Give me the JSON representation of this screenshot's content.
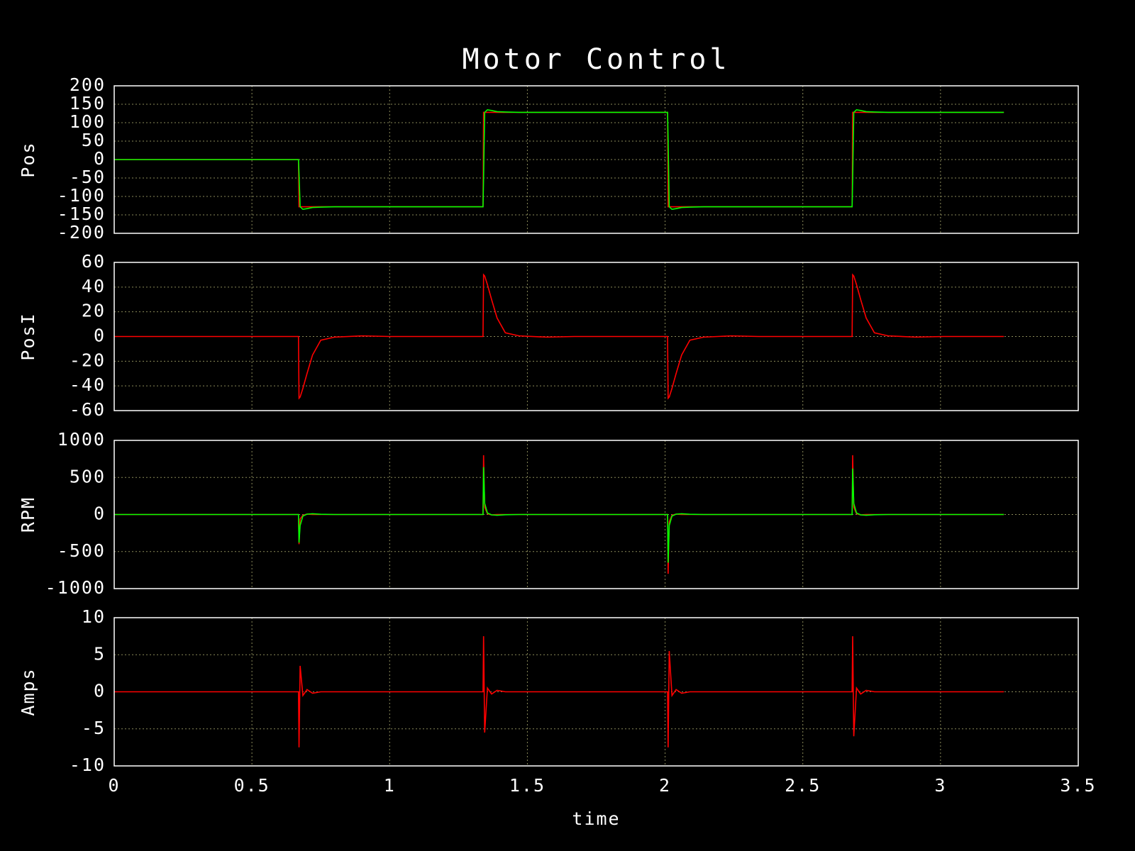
{
  "chart_data": [
    {
      "type": "line",
      "title": "Motor Control",
      "ylabel": "Pos",
      "xlim": [
        0,
        3.5
      ],
      "xticks": [
        0,
        0.5,
        1,
        1.5,
        2,
        2.5,
        3,
        3.5
      ],
      "ylim": [
        -200,
        200
      ],
      "yticks": [
        -200,
        -150,
        -100,
        -50,
        0,
        50,
        100,
        150,
        200
      ],
      "grid": true,
      "x": [
        0,
        0.669,
        0.671,
        0.675,
        0.685,
        0.7,
        0.72,
        0.75,
        0.8,
        0.9,
        1.0,
        1.339,
        1.341,
        1.345,
        1.355,
        1.37,
        1.39,
        1.42,
        1.47,
        1.57,
        1.67,
        2.009,
        2.011,
        2.015,
        2.025,
        2.04,
        2.06,
        2.09,
        2.14,
        2.24,
        2.34,
        2.679,
        2.681,
        2.685,
        2.695,
        2.71,
        2.73,
        2.76,
        2.81,
        2.91,
        3.01,
        3.23
      ],
      "series": [
        {
          "color": "#ff0000",
          "values": [
            0,
            0,
            -128,
            -128,
            -128,
            -128,
            -128,
            -128,
            -128,
            -128,
            -128,
            -128,
            128,
            128,
            128,
            128,
            128,
            128,
            128,
            128,
            128,
            128,
            -128,
            -128,
            -128,
            -128,
            -128,
            -128,
            -128,
            -128,
            -128,
            -128,
            128,
            128,
            128,
            128,
            128,
            128,
            128,
            128,
            128,
            128
          ]
        },
        {
          "color": "#00ff00",
          "values": [
            0,
            0,
            -40,
            -128,
            -135,
            -133,
            -130,
            -129,
            -128,
            -128,
            -128,
            -128,
            -50,
            128,
            135,
            133,
            130,
            129,
            128,
            128,
            128,
            128,
            50,
            -128,
            -135,
            -133,
            -130,
            -129,
            -128,
            -128,
            -128,
            -128,
            -50,
            128,
            135,
            133,
            130,
            129,
            128,
            128,
            128,
            128
          ]
        }
      ]
    },
    {
      "type": "line",
      "ylabel": "PosI",
      "xlim": [
        0,
        3.5
      ],
      "xticks": [
        0,
        0.5,
        1,
        1.5,
        2,
        2.5,
        3,
        3.5
      ],
      "ylim": [
        -60,
        60
      ],
      "yticks": [
        -60,
        -40,
        -20,
        0,
        20,
        40,
        60
      ],
      "grid": true,
      "x": [
        0,
        0.669,
        0.671,
        0.675,
        0.685,
        0.7,
        0.72,
        0.75,
        0.8,
        0.9,
        1.0,
        1.339,
        1.341,
        1.345,
        1.355,
        1.37,
        1.39,
        1.42,
        1.47,
        1.57,
        1.67,
        2.009,
        2.011,
        2.015,
        2.025,
        2.04,
        2.06,
        2.09,
        2.14,
        2.24,
        2.34,
        2.679,
        2.681,
        2.685,
        2.695,
        2.71,
        2.73,
        2.76,
        2.81,
        2.91,
        3.01,
        3.23
      ],
      "series": [
        {
          "color": "#ff0000",
          "values": [
            0,
            0,
            -50,
            -49,
            -42,
            -30,
            -15,
            -3,
            -0.5,
            0.5,
            0,
            0,
            50,
            49,
            42,
            30,
            15,
            3,
            0.5,
            -0.5,
            0,
            0,
            -50,
            -49,
            -42,
            -30,
            -15,
            -3,
            -0.5,
            0.5,
            0,
            0,
            50,
            49,
            42,
            30,
            15,
            3,
            0.5,
            -0.5,
            0,
            0
          ]
        }
      ]
    },
    {
      "type": "line",
      "ylabel": "RPM",
      "xlim": [
        0,
        3.5
      ],
      "xticks": [
        0,
        0.5,
        1,
        1.5,
        2,
        2.5,
        3,
        3.5
      ],
      "ylim": [
        -1000,
        1000
      ],
      "yticks": [
        -1000,
        -500,
        0,
        500,
        1000
      ],
      "grid": true,
      "x": [
        0,
        0.669,
        0.671,
        0.675,
        0.685,
        0.7,
        0.72,
        0.75,
        0.8,
        0.9,
        1.0,
        1.339,
        1.341,
        1.345,
        1.355,
        1.37,
        1.39,
        1.42,
        1.47,
        1.57,
        1.67,
        2.009,
        2.011,
        2.015,
        2.025,
        2.04,
        2.06,
        2.09,
        2.14,
        2.24,
        2.34,
        2.679,
        2.681,
        2.685,
        2.695,
        2.71,
        2.73,
        2.76,
        2.81,
        2.91,
        3.01,
        3.23
      ],
      "series": [
        {
          "color": "#ff0000",
          "values": [
            0,
            0,
            -400,
            -60,
            -10,
            5,
            0,
            0,
            0,
            0,
            0,
            0,
            800,
            100,
            10,
            -5,
            0,
            0,
            0,
            0,
            0,
            0,
            -800,
            -100,
            -10,
            5,
            0,
            0,
            0,
            0,
            0,
            0,
            800,
            100,
            10,
            -5,
            0,
            0,
            0,
            0,
            0,
            0
          ]
        },
        {
          "color": "#00ff00",
          "values": [
            0,
            0,
            -380,
            -150,
            -20,
            5,
            10,
            3,
            0,
            0,
            0,
            0,
            640,
            150,
            20,
            -5,
            -10,
            -3,
            0,
            0,
            0,
            0,
            -650,
            -150,
            -20,
            5,
            10,
            3,
            0,
            0,
            0,
            0,
            620,
            150,
            20,
            -5,
            -10,
            -3,
            0,
            0,
            0,
            0
          ]
        }
      ]
    },
    {
      "type": "line",
      "ylabel": "Amps",
      "xlabel": "time",
      "xlim": [
        0,
        3.5
      ],
      "xticks": [
        0,
        0.5,
        1,
        1.5,
        2,
        2.5,
        3,
        3.5
      ],
      "ylim": [
        -10,
        10
      ],
      "yticks": [
        -10,
        -5,
        0,
        5,
        10
      ],
      "grid": true,
      "x": [
        0,
        0.669,
        0.671,
        0.675,
        0.685,
        0.7,
        0.72,
        0.75,
        0.8,
        0.9,
        1.0,
        1.339,
        1.341,
        1.345,
        1.355,
        1.37,
        1.39,
        1.42,
        1.47,
        1.57,
        1.67,
        2.009,
        2.011,
        2.015,
        2.025,
        2.04,
        2.06,
        2.09,
        2.14,
        2.24,
        2.34,
        2.679,
        2.681,
        2.685,
        2.695,
        2.71,
        2.73,
        2.76,
        2.81,
        2.91,
        3.01,
        3.23
      ],
      "series": [
        {
          "color": "#ff0000",
          "values": [
            0,
            0,
            -7.5,
            3.5,
            -0.5,
            0.3,
            -0.2,
            0,
            0,
            0,
            0,
            0,
            7.5,
            -5.5,
            0.5,
            -0.3,
            0.2,
            0,
            0,
            0,
            0,
            0,
            -7.5,
            5.5,
            -0.5,
            0.3,
            -0.2,
            0,
            0,
            0,
            0,
            0,
            7.5,
            -6,
            0.5,
            -0.3,
            0.2,
            0,
            0,
            0,
            0,
            0
          ]
        }
      ]
    }
  ]
}
